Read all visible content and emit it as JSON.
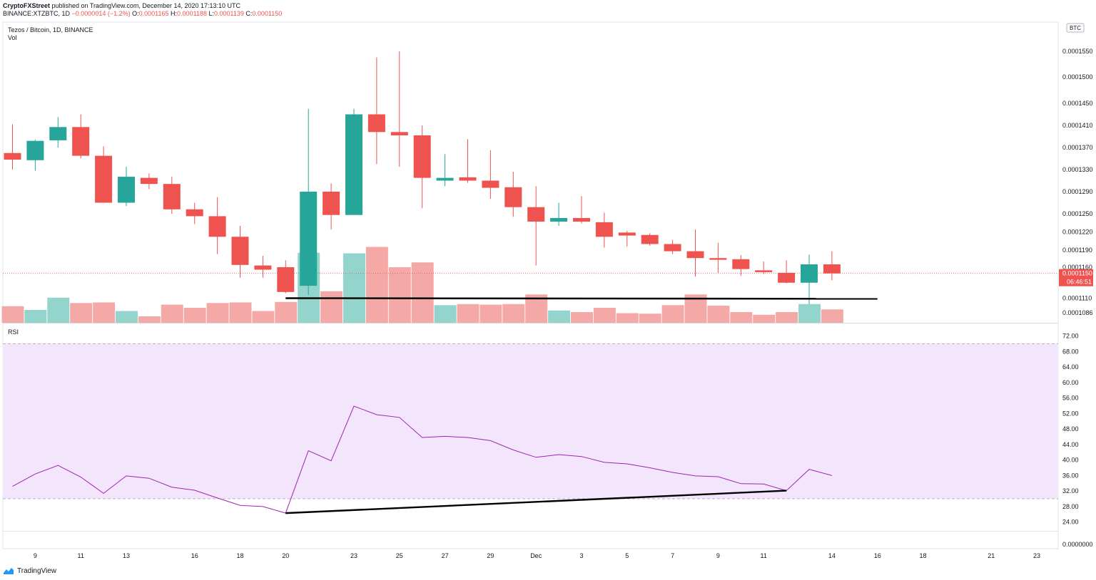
{
  "header": {
    "publisher": "CryptoFXStreet",
    "published_text": " published on TradingView.com, December 14, 2020 17:13:10 UTC",
    "symbol_line": "BINANCE:XTZBTC, 1D",
    "change": "−0.0000014 (−1.2%)",
    "o_label": "O:",
    "o": "0.0001165",
    "h_label": "H:",
    "h": "0.0001188",
    "l_label": "L:",
    "l": "0.0001139",
    "c_label": "C:",
    "c": "0.0001150"
  },
  "pane": {
    "symbol_title": "Tezos / Bitcoin, 1D, BINANCE",
    "vol_label": "Vol",
    "rsi_label": "RSI",
    "currency_badge": "BTC",
    "last_price": "0.0001150",
    "countdown": "06:46:51"
  },
  "footer": {
    "brand": "TradingView"
  },
  "colors": {
    "up": "#26a69a",
    "down": "#ef5350",
    "rsi_line": "#9c27b0",
    "rsi_band": "#f3e5fc",
    "trend": "#000000"
  },
  "chart_data": {
    "type": "candlestick",
    "x_ticks": [
      "9",
      "11",
      "13",
      "16",
      "18",
      "20",
      "23",
      "25",
      "27",
      "29",
      "Dec",
      "3",
      "5",
      "7",
      "9",
      "11",
      "14",
      "16",
      "18",
      "21",
      "23"
    ],
    "price_ticks": [
      "0.0001550",
      "0.0001500",
      "0.0001450",
      "0.0001410",
      "0.0001370",
      "0.0001330",
      "0.0001290",
      "0.0001250",
      "0.0001220",
      "0.0001190",
      "0.0001160",
      "0.0001110",
      "0.0001086",
      "0.0000000"
    ],
    "rsi_ticks": [
      "72.00",
      "68.00",
      "64.00",
      "60.00",
      "56.00",
      "52.00",
      "48.00",
      "44.00",
      "40.00",
      "36.00",
      "32.00",
      "28.00",
      "24.00"
    ],
    "rsi_band": [
      30,
      70
    ],
    "candles": [
      {
        "o": 0.000136,
        "h": 0.0001412,
        "l": 0.000133,
        "c": 0.0001348
      },
      {
        "o": 0.0001347,
        "h": 0.0001384,
        "l": 0.0001328,
        "c": 0.0001382
      },
      {
        "o": 0.0001383,
        "h": 0.0001425,
        "l": 0.000137,
        "c": 0.0001407
      },
      {
        "o": 0.0001407,
        "h": 0.000143,
        "l": 0.000135,
        "c": 0.0001355
      },
      {
        "o": 0.0001355,
        "h": 0.0001372,
        "l": 0.000127,
        "c": 0.000127
      },
      {
        "o": 0.000127,
        "h": 0.0001335,
        "l": 0.0001264,
        "c": 0.0001317
      },
      {
        "o": 0.0001315,
        "h": 0.0001323,
        "l": 0.0001295,
        "c": 0.0001304
      },
      {
        "o": 0.0001304,
        "h": 0.0001317,
        "l": 0.000125,
        "c": 0.0001258
      },
      {
        "o": 0.0001258,
        "h": 0.000127,
        "l": 0.0001233,
        "c": 0.0001246
      },
      {
        "o": 0.0001246,
        "h": 0.000128,
        "l": 0.0001183,
        "c": 0.0001212
      },
      {
        "o": 0.0001212,
        "h": 0.000123,
        "l": 0.0001143,
        "c": 0.0001164
      },
      {
        "o": 0.0001163,
        "h": 0.000118,
        "l": 0.0001143,
        "c": 0.0001156
      },
      {
        "o": 0.000116,
        "h": 0.0001172,
        "l": 0.0001118,
        "c": 0.000112
      },
      {
        "o": 0.000113,
        "h": 0.000144,
        "l": 0.0001115,
        "c": 0.000129
      },
      {
        "o": 0.000129,
        "h": 0.0001305,
        "l": 0.0001224,
        "c": 0.0001248
      },
      {
        "o": 0.0001248,
        "h": 0.000144,
        "l": 0.0001248,
        "c": 0.000143
      },
      {
        "o": 0.000143,
        "h": 0.0001538,
        "l": 0.000134,
        "c": 0.0001398
      },
      {
        "o": 0.0001398,
        "h": 0.000155,
        "l": 0.0001335,
        "c": 0.0001392
      },
      {
        "o": 0.0001392,
        "h": 0.000141,
        "l": 0.000126,
        "c": 0.0001315
      },
      {
        "o": 0.000131,
        "h": 0.0001358,
        "l": 0.00013,
        "c": 0.0001315
      },
      {
        "o": 0.0001316,
        "h": 0.0001385,
        "l": 0.0001306,
        "c": 0.000131
      },
      {
        "o": 0.000131,
        "h": 0.0001365,
        "l": 0.0001277,
        "c": 0.0001297
      },
      {
        "o": 0.0001298,
        "h": 0.0001326,
        "l": 0.0001245,
        "c": 0.0001262
      },
      {
        "o": 0.0001262,
        "h": 0.00013,
        "l": 0.0001163,
        "c": 0.0001237
      },
      {
        "o": 0.0001237,
        "h": 0.000127,
        "l": 0.000123,
        "c": 0.0001243
      },
      {
        "o": 0.0001243,
        "h": 0.0001282,
        "l": 0.0001234,
        "c": 0.0001237
      },
      {
        "o": 0.0001236,
        "h": 0.0001252,
        "l": 0.0001194,
        "c": 0.0001212
      },
      {
        "o": 0.0001219,
        "h": 0.0001222,
        "l": 0.0001196,
        "c": 0.0001214
      },
      {
        "o": 0.0001215,
        "h": 0.0001218,
        "l": 0.0001197,
        "c": 0.00012
      },
      {
        "o": 0.00012,
        "h": 0.0001207,
        "l": 0.0001183,
        "c": 0.0001188
      },
      {
        "o": 0.0001188,
        "h": 0.0001224,
        "l": 0.0001145,
        "c": 0.0001176
      },
      {
        "o": 0.0001176,
        "h": 0.0001202,
        "l": 0.0001151,
        "c": 0.0001173
      },
      {
        "o": 0.0001174,
        "h": 0.0001181,
        "l": 0.0001146,
        "c": 0.0001157
      },
      {
        "o": 0.0001155,
        "h": 0.000117,
        "l": 0.0001149,
        "c": 0.0001152
      },
      {
        "o": 0.0001151,
        "h": 0.0001172,
        "l": 0.0001134,
        "c": 0.0001135
      },
      {
        "o": 0.0001135,
        "h": 0.0001182,
        "l": 0.00011,
        "c": 0.0001165
      },
      {
        "o": 0.0001165,
        "h": 0.0001188,
        "l": 0.0001139,
        "c": 0.000115
      }
    ],
    "volume_relative": [
      0.31,
      0.24,
      0.47,
      0.37,
      0.38,
      0.22,
      0.12,
      0.34,
      0.28,
      0.37,
      0.38,
      0.22,
      0.39,
      1.31,
      0.59,
      1.3,
      1.42,
      1.04,
      1.13,
      0.33,
      0.35,
      0.34,
      0.35,
      0.53,
      0.23,
      0.2,
      0.28,
      0.18,
      0.17,
      0.33,
      0.53,
      0.32,
      0.2,
      0.15,
      0.2,
      0.35,
      0.25
    ],
    "rsi": [
      33.2,
      36.4,
      38.6,
      35.6,
      31.4,
      35.9,
      35.3,
      33.0,
      32.2,
      30.2,
      28.3,
      28.0,
      26.3,
      42.4,
      39.8,
      53.9,
      51.7,
      51.0,
      45.8,
      46.1,
      45.8,
      45.0,
      42.6,
      40.7,
      41.4,
      40.9,
      39.4,
      39.0,
      38.0,
      36.8,
      35.9,
      35.7,
      33.9,
      33.8,
      32.1,
      37.6,
      36.0
    ],
    "trendlines": [
      {
        "pane": "price",
        "from_index": 12,
        "to_index": 38,
        "value_start": 0.000111,
        "value_end": 0.0001109
      },
      {
        "pane": "rsi",
        "from_index": 12,
        "to_index": 34,
        "value_start": 26.3,
        "value_end": 32.1
      }
    ]
  }
}
